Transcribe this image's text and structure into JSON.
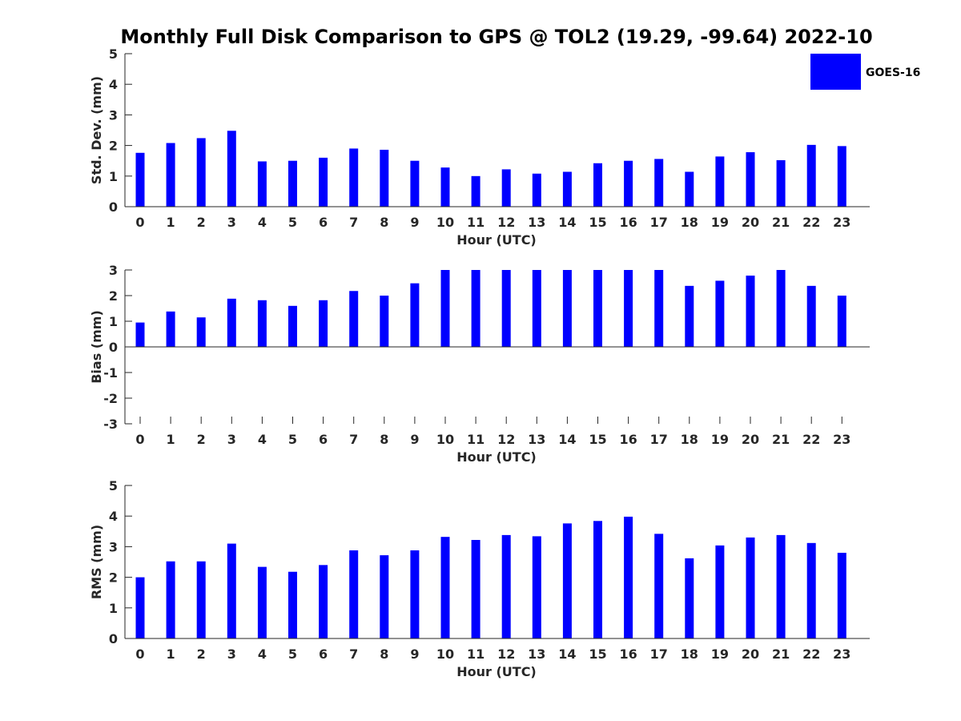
{
  "title": "Monthly Full Disk Comparison to GPS @ TOL2 (19.29, -99.64) 2022-10",
  "legend": {
    "label": "GOES-16",
    "color": "#0000ff",
    "position": "top-right"
  },
  "chart_data": [
    {
      "type": "bar",
      "title": "",
      "xlabel": "Hour (UTC)",
      "ylabel": "Std. Dev. (mm)",
      "ylim": [
        0,
        5
      ],
      "yticks": [
        0,
        1,
        2,
        3,
        4,
        5
      ],
      "categories": [
        "0",
        "1",
        "2",
        "3",
        "4",
        "5",
        "6",
        "7",
        "8",
        "9",
        "10",
        "11",
        "12",
        "13",
        "14",
        "15",
        "16",
        "17",
        "18",
        "19",
        "20",
        "21",
        "22",
        "23"
      ],
      "series": [
        {
          "name": "GOES-16",
          "color": "#0000ff",
          "values": [
            1.76,
            2.08,
            2.24,
            2.48,
            1.48,
            1.5,
            1.6,
            1.9,
            1.86,
            1.5,
            1.28,
            1.0,
            1.22,
            1.08,
            1.14,
            1.42,
            1.5,
            1.56,
            1.14,
            1.64,
            1.78,
            1.52,
            2.02,
            1.98
          ]
        }
      ]
    },
    {
      "type": "bar",
      "title": "",
      "xlabel": "Hour (UTC)",
      "ylabel": "Bias (mm)",
      "ylim": [
        -3,
        3
      ],
      "yticks": [
        -3,
        -2,
        -1,
        0,
        1,
        2,
        3
      ],
      "categories": [
        "0",
        "1",
        "2",
        "3",
        "4",
        "5",
        "6",
        "7",
        "8",
        "9",
        "10",
        "11",
        "12",
        "13",
        "14",
        "15",
        "16",
        "17",
        "18",
        "19",
        "20",
        "21",
        "22",
        "23"
      ],
      "series": [
        {
          "name": "GOES-16",
          "color": "#0000ff",
          "values": [
            0.95,
            1.38,
            1.15,
            1.88,
            1.82,
            1.6,
            1.82,
            2.18,
            2.0,
            2.48,
            3.0,
            3.0,
            3.0,
            3.0,
            3.0,
            3.0,
            3.0,
            3.0,
            2.38,
            2.58,
            2.78,
            3.0,
            2.38,
            2.0
          ]
        }
      ]
    },
    {
      "type": "bar",
      "title": "",
      "xlabel": "Hour (UTC)",
      "ylabel": "RMS (mm)",
      "ylim": [
        0,
        5
      ],
      "yticks": [
        0,
        1,
        2,
        3,
        4,
        5
      ],
      "categories": [
        "0",
        "1",
        "2",
        "3",
        "4",
        "5",
        "6",
        "7",
        "8",
        "9",
        "10",
        "11",
        "12",
        "13",
        "14",
        "15",
        "16",
        "17",
        "18",
        "19",
        "20",
        "21",
        "22",
        "23"
      ],
      "series": [
        {
          "name": "GOES-16",
          "color": "#0000ff",
          "values": [
            2.0,
            2.52,
            2.52,
            3.1,
            2.34,
            2.18,
            2.4,
            2.88,
            2.72,
            2.88,
            3.32,
            3.22,
            3.38,
            3.34,
            3.76,
            3.84,
            3.98,
            3.42,
            2.62,
            3.04,
            3.3,
            3.38,
            3.12,
            2.8
          ]
        }
      ]
    }
  ]
}
